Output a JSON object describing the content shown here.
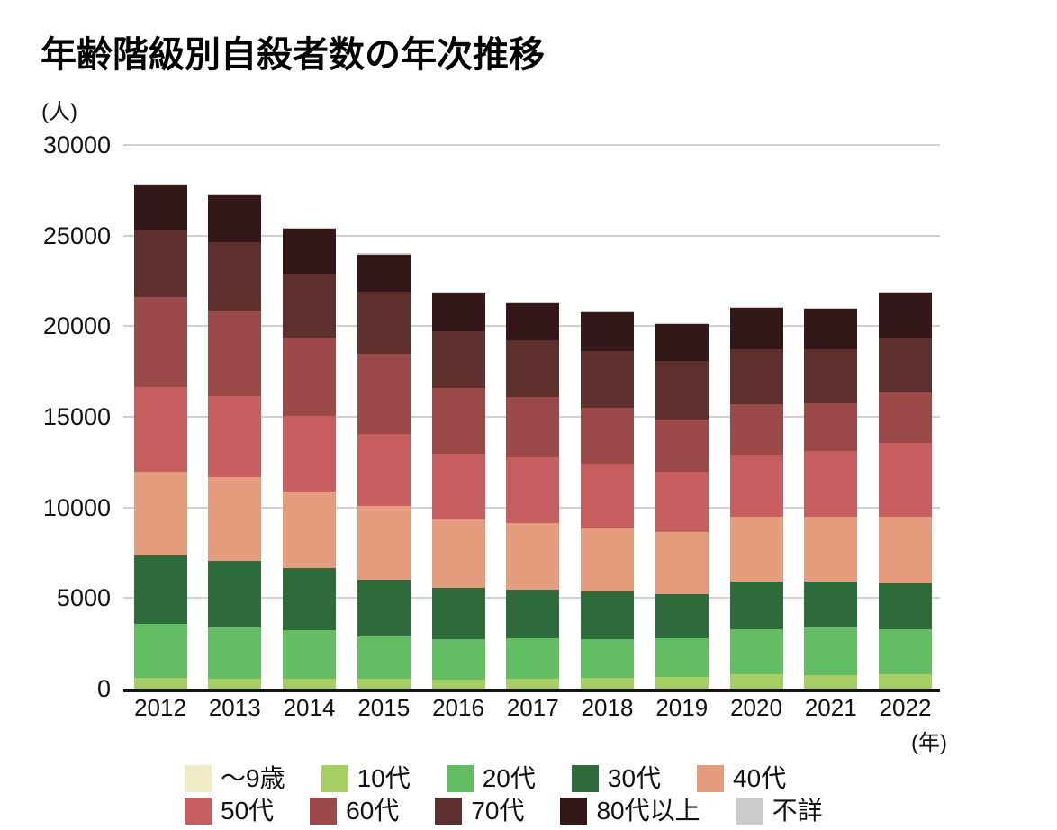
{
  "title": "年齢階級別自殺者数の年次推移",
  "y_axis": {
    "unit_label": "(人)",
    "ticks": [
      30000,
      25000,
      20000,
      15000,
      10000,
      5000,
      0
    ]
  },
  "x_axis": {
    "unit_label": "(年)",
    "years": [
      "2012",
      "2013",
      "2014",
      "2015",
      "2016",
      "2017",
      "2018",
      "2019",
      "2020",
      "2021",
      "2022"
    ]
  },
  "colors": {
    "grid": "#d0d0d0",
    "axis": "#141414",
    "text": "#111111"
  },
  "chart_data": {
    "type": "bar",
    "stacked": true,
    "title": "年齢階級別自殺者数の年次推移",
    "xlabel": "(年)",
    "ylabel": "(人)",
    "ylim": [
      0,
      30000
    ],
    "grid": true,
    "legend_position": "bottom",
    "categories": [
      "2012",
      "2013",
      "2014",
      "2015",
      "2016",
      "2017",
      "2018",
      "2019",
      "2020",
      "2021",
      "2022"
    ],
    "series": [
      {
        "name": "～9歳",
        "color": "#efecc6",
        "values": [
          2,
          2,
          1,
          1,
          1,
          1,
          1,
          1,
          1,
          1,
          1
        ]
      },
      {
        "name": "10代",
        "color": "#a6cf63",
        "values": [
          585,
          563,
          537,
          553,
          519,
          566,
          598,
          658,
          776,
          749,
          797
        ]
      },
      {
        "name": "20代",
        "color": "#63bd63",
        "values": [
          3000,
          2801,
          2684,
          2352,
          2235,
          2213,
          2152,
          2117,
          2521,
          2611,
          2483
        ]
      },
      {
        "name": "30代",
        "color": "#2d6b3b",
        "values": [
          3781,
          3705,
          3413,
          3087,
          2824,
          2703,
          2596,
          2437,
          2610,
          2554,
          2545
        ]
      },
      {
        "name": "40代",
        "color": "#e59c7c",
        "values": [
          4616,
          4589,
          4234,
          4069,
          3739,
          3668,
          3498,
          3426,
          3568,
          3575,
          3665
        ]
      },
      {
        "name": "50代",
        "color": "#c65e60",
        "values": [
          4668,
          4484,
          4181,
          3979,
          3631,
          3593,
          3575,
          3320,
          3425,
          3618,
          4093
        ]
      },
      {
        "name": "60代",
        "color": "#9c4a49",
        "values": [
          4976,
          4716,
          4325,
          4418,
          3626,
          3339,
          3079,
          2902,
          2795,
          2637,
          2765
        ]
      },
      {
        "name": "70代",
        "color": "#5d302e",
        "values": [
          3661,
          3785,
          3508,
          3451,
          3141,
          3149,
          3137,
          3212,
          3026,
          2982,
          2994
        ]
      },
      {
        "name": "80代以上",
        "color": "#331719",
        "values": [
          2499,
          2565,
          2477,
          2050,
          2111,
          2015,
          2118,
          2021,
          2282,
          2214,
          2490
        ]
      },
      {
        "name": "不詳",
        "color": "#cbcbcb",
        "values": [
          70,
          73,
          67,
          65,
          70,
          74,
          86,
          75,
          77,
          66,
          48
        ]
      }
    ],
    "totals": [
      27858,
      27283,
      25427,
      24025,
      21897,
      21321,
      20840,
      20169,
      21081,
      21007,
      21881
    ],
    "legend_rows": [
      [
        "～9歳",
        "10代",
        "20代",
        "30代",
        "40代"
      ],
      [
        "50代",
        "60代",
        "70代",
        "80代以上",
        "不詳"
      ]
    ]
  }
}
